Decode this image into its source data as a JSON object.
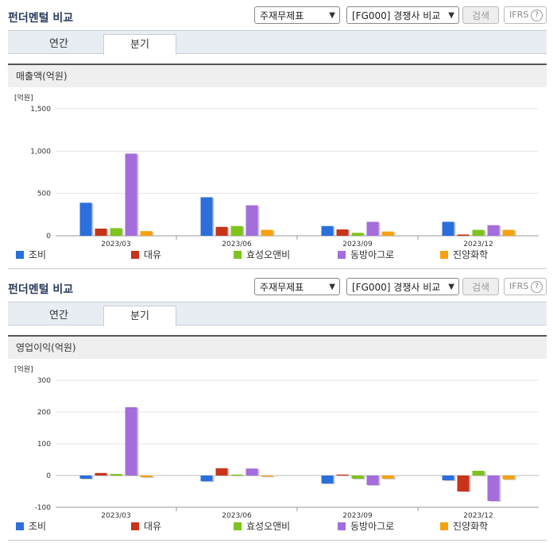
{
  "panels": [
    {
      "title": "펀더멘털 비교",
      "select_statement": "주재무제표",
      "select_compare": "[FG000] 경쟁사 비교",
      "search_label": "검색",
      "ifrs_label": "IFRS",
      "help_glyph": "?",
      "tabs": [
        {
          "label": "연간",
          "active": false
        },
        {
          "label": "분기",
          "active": true
        }
      ],
      "section_title": "매출액(억원)"
    },
    {
      "title": "펀더멘털 비교",
      "select_statement": "주재무제표",
      "select_compare": "[FG000] 경쟁사 비교",
      "search_label": "검색",
      "ifrs_label": "IFRS",
      "help_glyph": "?",
      "tabs": [
        {
          "label": "연간",
          "active": false
        },
        {
          "label": "분기",
          "active": true
        }
      ],
      "section_title": "영업이익(억원)"
    }
  ],
  "chart_data": [
    {
      "type": "bar",
      "unit_label": "[억원]",
      "categories": [
        "2023/03",
        "2023/06",
        "2023/09",
        "2023/12"
      ],
      "ylim": [
        0,
        1500
      ],
      "yticks": [
        0,
        500,
        1000,
        1500
      ],
      "ytick_labels": [
        "0",
        "500",
        "1,000",
        "1,500"
      ],
      "grid": true,
      "series": [
        {
          "name": "조비",
          "color": "#2a6fdb",
          "values": [
            390,
            455,
            115,
            165
          ]
        },
        {
          "name": "대유",
          "color": "#c8341a",
          "values": [
            85,
            105,
            75,
            15
          ]
        },
        {
          "name": "효성오앤비",
          "color": "#7fc31c",
          "values": [
            90,
            115,
            35,
            70
          ]
        },
        {
          "name": "동방아그로",
          "color": "#a46ddb",
          "values": [
            970,
            360,
            165,
            125
          ]
        },
        {
          "name": "진양화학",
          "color": "#f5a20e",
          "values": [
            55,
            70,
            50,
            70
          ]
        }
      ]
    },
    {
      "type": "bar",
      "unit_label": "[억원]",
      "categories": [
        "2023/03",
        "2023/06",
        "2023/09",
        "2023/12"
      ],
      "ylim": [
        -100,
        300
      ],
      "yticks": [
        -100,
        0,
        100,
        200,
        300
      ],
      "ytick_labels": [
        "-100",
        "0",
        "100",
        "200",
        "300"
      ],
      "grid": true,
      "series": [
        {
          "name": "조비",
          "color": "#2a6fdb",
          "values": [
            -10,
            -18,
            -25,
            -15
          ]
        },
        {
          "name": "대유",
          "color": "#c8341a",
          "values": [
            8,
            23,
            3,
            -50
          ]
        },
        {
          "name": "효성오앤비",
          "color": "#7fc31c",
          "values": [
            5,
            3,
            -10,
            15
          ]
        },
        {
          "name": "동방아그로",
          "color": "#a46ddb",
          "values": [
            215,
            22,
            -30,
            -80
          ]
        },
        {
          "name": "진양화학",
          "color": "#f5a20e",
          "values": [
            -5,
            -3,
            -10,
            -12
          ]
        }
      ]
    }
  ]
}
